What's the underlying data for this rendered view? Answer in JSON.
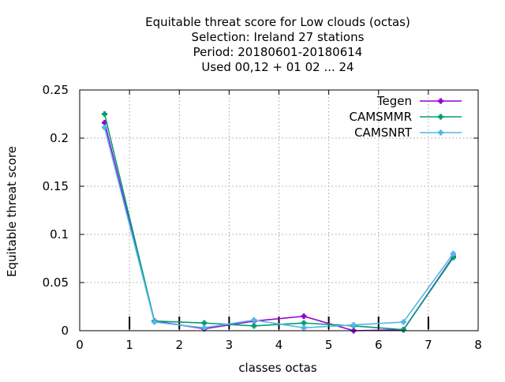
{
  "chart_data": {
    "type": "line",
    "title_lines": [
      "Equitable threat score  for Low clouds (octas)",
      "Selection: Ireland      27 stations",
      "Period: 20180601-20180614",
      "Used  00,12  + 01 02 ... 24"
    ],
    "xlabel": "classes octas",
    "ylabel": "Equitable threat score",
    "xlim": [
      0,
      8
    ],
    "ylim": [
      0,
      0.25
    ],
    "x_ticks": [
      "0",
      "1",
      "2",
      "3",
      "4",
      "5",
      "6",
      "7",
      "8"
    ],
    "y_ticks": [
      "0",
      "0.05",
      "0.1",
      "0.15",
      "0.2",
      "0.25"
    ],
    "grid": true,
    "legend_position": "top-right",
    "x": [
      0.5,
      1.5,
      2.5,
      3.5,
      4.5,
      5.5,
      6.5,
      7.5
    ],
    "series": [
      {
        "name": "Tegen",
        "color": "#9400d3",
        "values": [
          0.216,
          0.01,
          0.002,
          0.01,
          0.015,
          0.0,
          0.001,
          0.077
        ]
      },
      {
        "name": "CAMSMMR",
        "color": "#009e73",
        "values": [
          0.225,
          0.01,
          0.008,
          0.005,
          0.008,
          0.005,
          0.001,
          0.076
        ]
      },
      {
        "name": "CAMSNRT",
        "color": "#56b4e9",
        "values": [
          0.211,
          0.009,
          0.003,
          0.011,
          0.003,
          0.006,
          0.009,
          0.08
        ]
      }
    ],
    "class_separator_ticks": [
      1,
      2,
      3,
      4,
      5,
      6,
      7
    ]
  }
}
